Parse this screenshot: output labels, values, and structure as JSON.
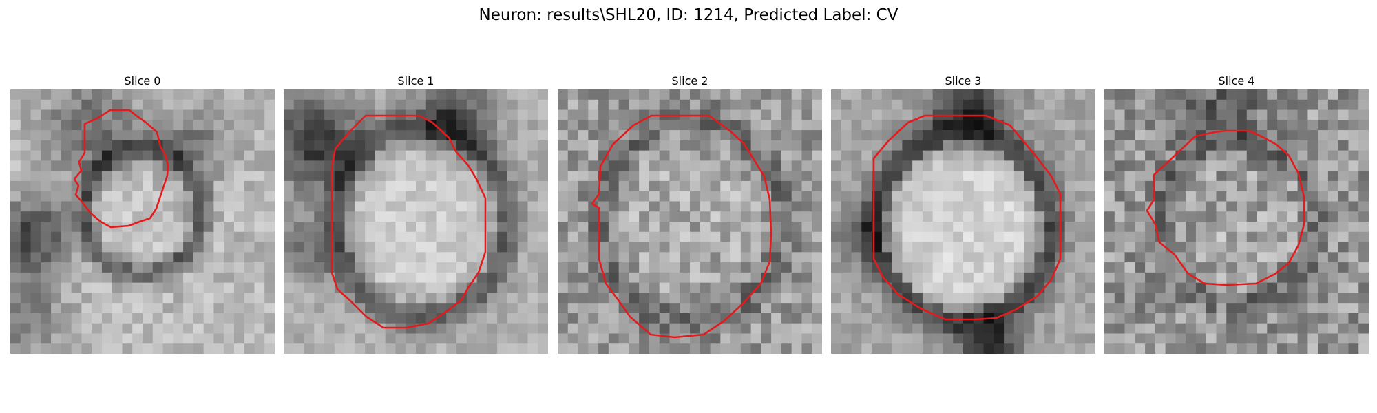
{
  "figure": {
    "title": "Neuron: results\\SHL20, ID: 1214, Predicted Label: CV"
  },
  "slices": [
    {
      "title": "Slice 0",
      "image": "grayscale-em-patch",
      "outline_color": "#e41a1c"
    },
    {
      "title": "Slice 1",
      "image": "grayscale-em-patch",
      "outline_color": "#e41a1c"
    },
    {
      "title": "Slice 2",
      "image": "grayscale-em-patch",
      "outline_color": "#e41a1c"
    },
    {
      "title": "Slice 3",
      "image": "grayscale-em-patch",
      "outline_color": "#e41a1c"
    },
    {
      "title": "Slice 4",
      "image": "grayscale-em-patch",
      "outline_color": "#e41a1c"
    }
  ]
}
